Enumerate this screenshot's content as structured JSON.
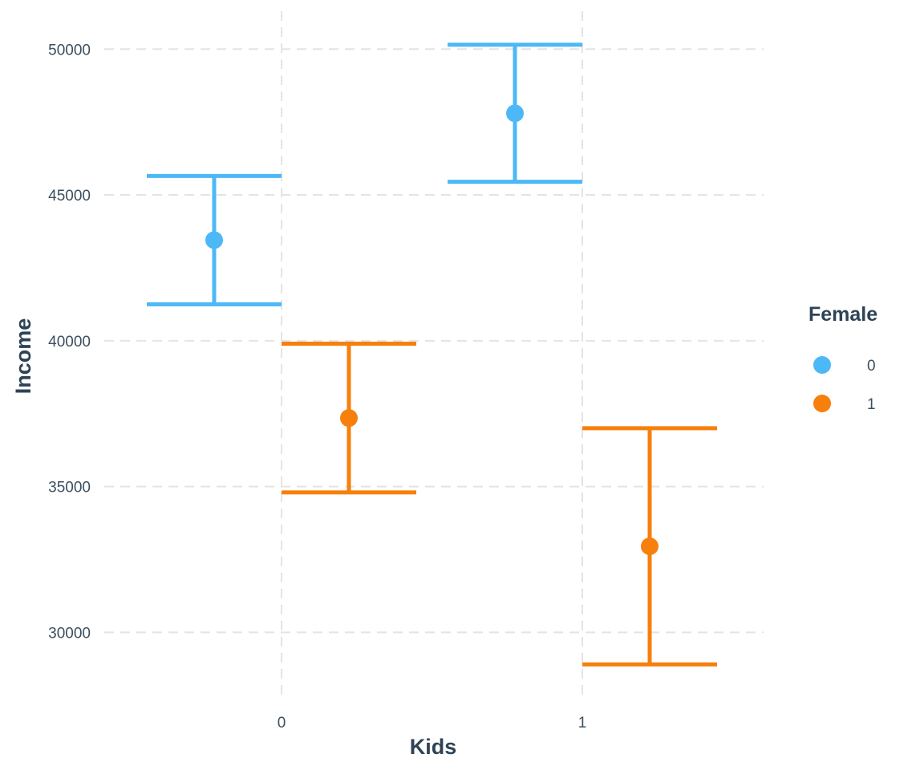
{
  "chart_data": {
    "type": "errorbar",
    "xlabel": "Kids",
    "ylabel": "Income",
    "x_categories": [
      "0",
      "1"
    ],
    "ylim": [
      27700,
      51300
    ],
    "y_ticks": [
      30000,
      35000,
      40000,
      45000,
      50000
    ],
    "grid": true,
    "legend": {
      "title": "Female",
      "position": "right",
      "entries": [
        {
          "label": "0",
          "color": "#4db8f7"
        },
        {
          "label": "1",
          "color": "#f77f0c"
        }
      ]
    },
    "series": [
      {
        "group": "0",
        "color": "#4db8f7",
        "points": [
          {
            "kids": "0",
            "mean": 43450,
            "lower": 41250,
            "upper": 45650
          },
          {
            "kids": "1",
            "mean": 47800,
            "lower": 45450,
            "upper": 50150
          }
        ]
      },
      {
        "group": "1",
        "color": "#f77f0c",
        "points": [
          {
            "kids": "0",
            "mean": 37350,
            "lower": 34800,
            "upper": 39900
          },
          {
            "kids": "1",
            "mean": 32950,
            "lower": 28900,
            "upper": 37000
          }
        ]
      }
    ]
  }
}
